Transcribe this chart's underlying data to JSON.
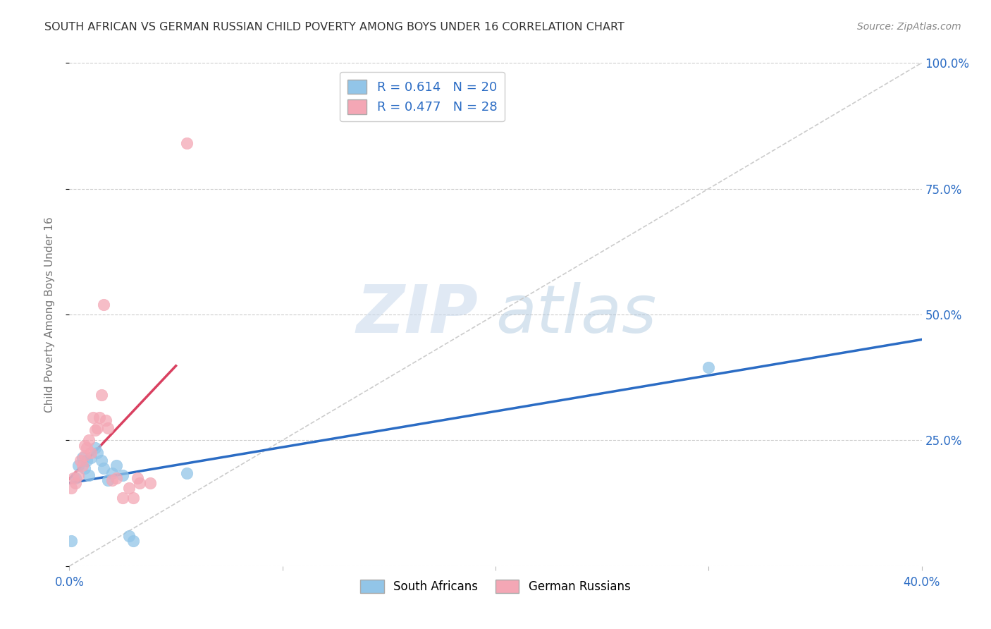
{
  "title": "SOUTH AFRICAN VS GERMAN RUSSIAN CHILD POVERTY AMONG BOYS UNDER 16 CORRELATION CHART",
  "source": "Source: ZipAtlas.com",
  "ylabel": "Child Poverty Among Boys Under 16",
  "xlim": [
    0.0,
    0.4
  ],
  "ylim": [
    0.0,
    1.0
  ],
  "legend1_r": "0.614",
  "legend1_n": "20",
  "legend2_r": "0.477",
  "legend2_n": "28",
  "color_blue": "#92C5E8",
  "color_pink": "#F4A7B5",
  "color_blue_line": "#2B6CC4",
  "color_pink_line": "#D94060",
  "color_blue_text": "#2B6CC4",
  "watermark_zip": "ZIP",
  "watermark_atlas": "atlas",
  "south_african_x": [
    0.001,
    0.003,
    0.004,
    0.006,
    0.007,
    0.008,
    0.009,
    0.01,
    0.012,
    0.013,
    0.015,
    0.016,
    0.018,
    0.02,
    0.022,
    0.025,
    0.028,
    0.03,
    0.055,
    0.3
  ],
  "south_african_y": [
    0.05,
    0.175,
    0.2,
    0.215,
    0.195,
    0.21,
    0.18,
    0.215,
    0.235,
    0.225,
    0.21,
    0.195,
    0.17,
    0.185,
    0.2,
    0.18,
    0.06,
    0.05,
    0.185,
    0.395
  ],
  "german_russian_x": [
    0.001,
    0.002,
    0.003,
    0.004,
    0.005,
    0.006,
    0.007,
    0.007,
    0.008,
    0.009,
    0.01,
    0.011,
    0.012,
    0.013,
    0.014,
    0.015,
    0.016,
    0.017,
    0.018,
    0.02,
    0.022,
    0.025,
    0.028,
    0.03,
    0.032,
    0.033,
    0.038,
    0.055
  ],
  "german_russian_y": [
    0.155,
    0.175,
    0.165,
    0.18,
    0.21,
    0.2,
    0.22,
    0.24,
    0.235,
    0.25,
    0.225,
    0.295,
    0.27,
    0.275,
    0.295,
    0.34,
    0.52,
    0.29,
    0.275,
    0.17,
    0.175,
    0.135,
    0.155,
    0.135,
    0.175,
    0.165,
    0.165,
    0.84
  ]
}
